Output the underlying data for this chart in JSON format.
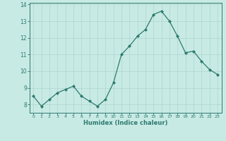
{
  "x": [
    0,
    1,
    2,
    3,
    4,
    5,
    6,
    7,
    8,
    9,
    10,
    11,
    12,
    13,
    14,
    15,
    16,
    17,
    18,
    19,
    20,
    21,
    22,
    23
  ],
  "y": [
    8.5,
    7.9,
    8.3,
    8.7,
    8.9,
    9.1,
    8.5,
    8.2,
    7.9,
    8.3,
    9.3,
    11.0,
    11.5,
    12.1,
    12.5,
    13.4,
    13.6,
    13.0,
    12.1,
    11.1,
    11.2,
    10.6,
    10.1,
    9.8
  ],
  "line_color": "#2d7a6e",
  "marker_color": "#2d7a6e",
  "bg_color": "#c8eae5",
  "grid_color": "#aed4ce",
  "axis_color": "#2d7a6e",
  "xlabel": "Humidex (Indice chaleur)",
  "xlim": [
    -0.5,
    23.5
  ],
  "ylim": [
    7.5,
    14.1
  ],
  "yticks": [
    8,
    9,
    10,
    11,
    12,
    13,
    14
  ],
  "xticks": [
    0,
    1,
    2,
    3,
    4,
    5,
    6,
    7,
    8,
    9,
    10,
    11,
    12,
    13,
    14,
    15,
    16,
    17,
    18,
    19,
    20,
    21,
    22,
    23
  ]
}
